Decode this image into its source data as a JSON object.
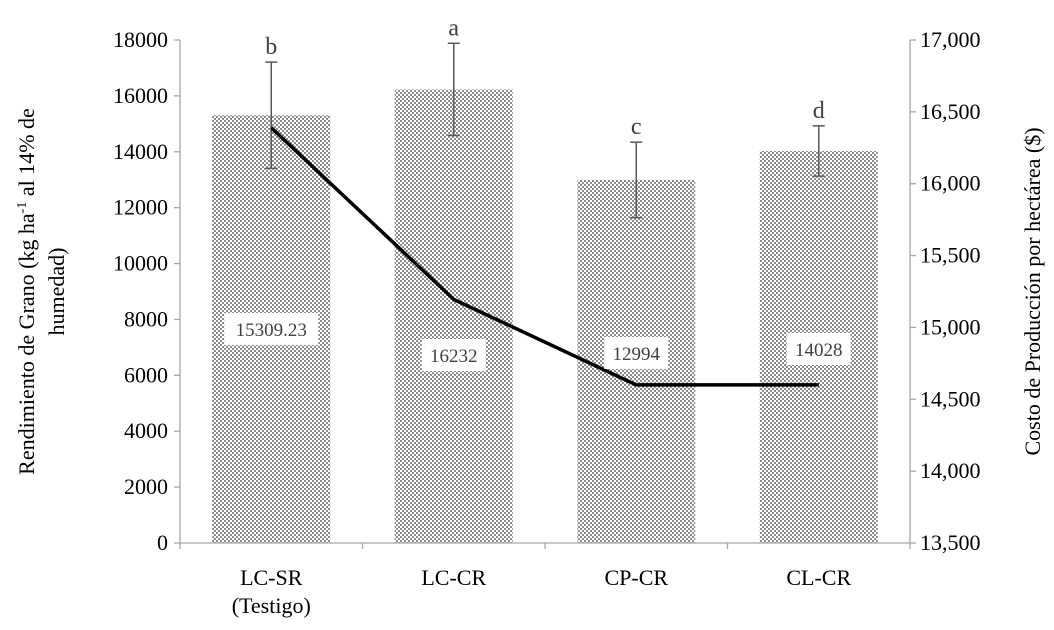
{
  "chart_data": {
    "type": "bar",
    "categories": [
      [
        "LC-SR",
        "(Testigo)"
      ],
      [
        "LC-CR"
      ],
      [
        "CP-CR"
      ],
      [
        "CL-CR"
      ]
    ],
    "series": [
      {
        "axis": "left",
        "kind": "bar",
        "values": [
          15309.23,
          16232,
          12994,
          14028
        ],
        "error": [
          1900,
          1650,
          1350,
          900
        ],
        "significance": [
          "b",
          "a",
          "c",
          "d"
        ],
        "data_labels": [
          "15309.23",
          "16232",
          "12994",
          "14028"
        ],
        "color": "#bdbdbd"
      },
      {
        "axis": "right",
        "kind": "line",
        "values": [
          16390,
          15195,
          14600,
          14600
        ],
        "color": "#000000"
      }
    ],
    "ylabel_left": [
      "Rendimiento de Grano (kg ha",
      "-1",
      " al 14% de",
      "humedad)"
    ],
    "ylabel_right": "Costo de Producción por hectárea ($)",
    "ylim_left": [
      0,
      18000
    ],
    "ylim_right": [
      13500,
      17000
    ],
    "yticks_left": [
      0,
      2000,
      4000,
      6000,
      8000,
      10000,
      12000,
      14000,
      16000,
      18000
    ],
    "ytick_labels_left": [
      "0",
      "2000",
      "4000",
      "6000",
      "8000",
      "10000",
      "12000",
      "14000",
      "16000",
      "18000"
    ],
    "yticks_right": [
      13500,
      14000,
      14500,
      15000,
      15500,
      16000,
      16500,
      17000
    ],
    "ytick_labels_right": [
      "13,500",
      "14,000",
      "14,500",
      "15,000",
      "15,500",
      "16,000",
      "16,500",
      "17,000"
    ],
    "grid": false,
    "legend": "none"
  }
}
